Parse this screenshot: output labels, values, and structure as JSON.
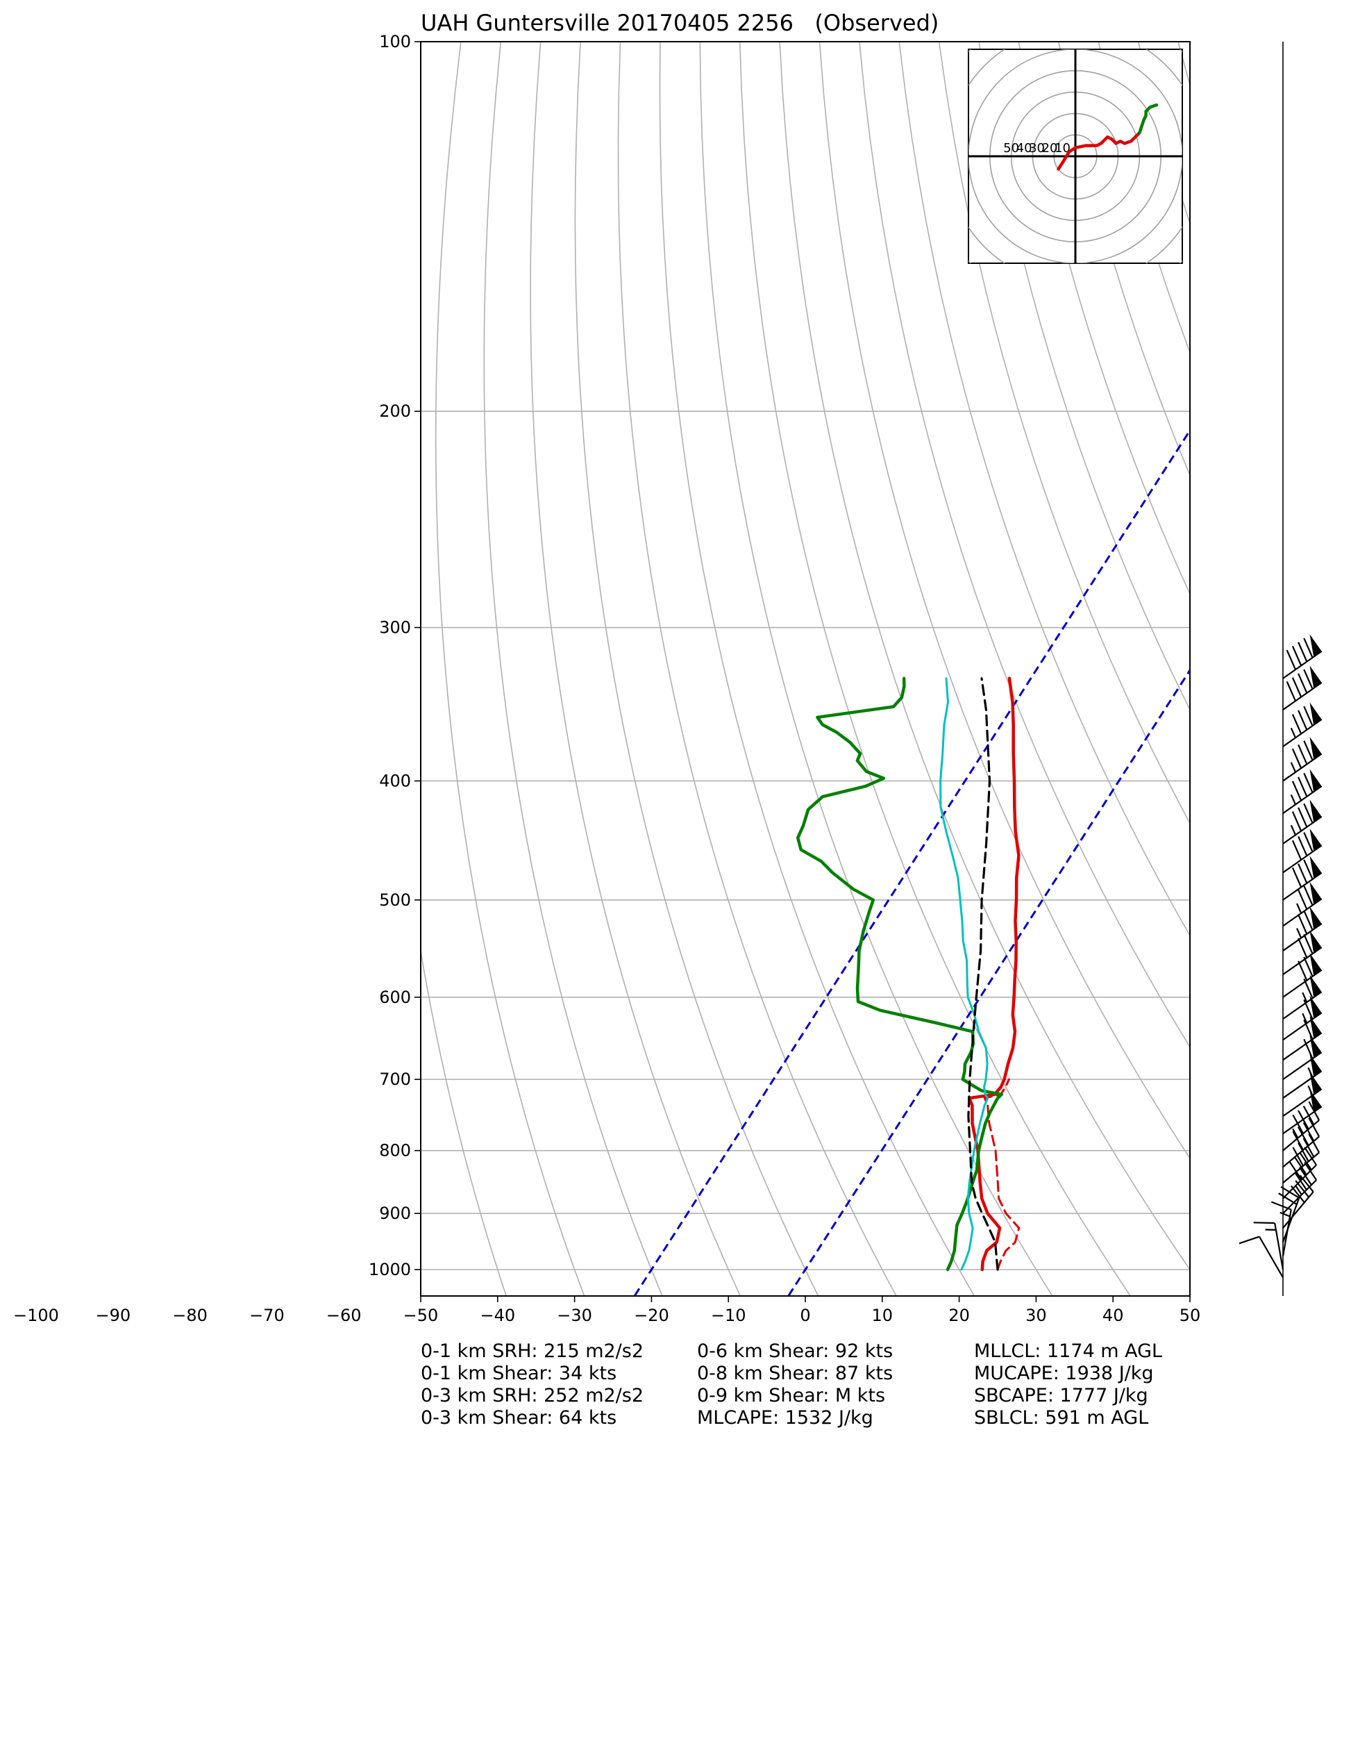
{
  "chart_data": {
    "type": "line",
    "title": "UAH Guntersville 20170405 2256   (Observed)",
    "diagram": "skew-T log-P",
    "xlabel": "",
    "ylabel": "",
    "x_range": [
      -50,
      50
    ],
    "x_tick_labels": [
      "−100",
      "−90",
      "−80",
      "−70",
      "−60",
      "−50",
      "−40",
      "−30",
      "−20",
      "−10",
      "0",
      "10",
      "20",
      "30",
      "40",
      "50"
    ],
    "x_ticks": [
      -100,
      -90,
      -80,
      -70,
      -60,
      -50,
      -40,
      -30,
      -20,
      -10,
      0,
      10,
      20,
      30,
      40,
      50
    ],
    "y_scale": "log",
    "y_range": [
      1050,
      100
    ],
    "y_ticks": [
      100,
      200,
      300,
      400,
      500,
      600,
      700,
      800,
      900,
      1000
    ],
    "y_tick_labels": [
      "100",
      "200",
      "300",
      "400",
      "500",
      "600",
      "700",
      "800",
      "900",
      "1000"
    ],
    "grid": true,
    "dry_adiabat_temps_at_1000hPa": [
      -40,
      -30,
      -20,
      -10,
      0,
      10,
      20,
      30,
      40,
      50,
      60,
      70,
      80,
      90,
      100,
      110,
      120,
      130,
      140,
      150,
      160,
      170,
      180
    ],
    "colors": {
      "temperature": "#e00000",
      "dewpoint": "#008000",
      "wetbulb": "#00c0c0",
      "parcel": "#000000",
      "isotherm": "#0000cc",
      "grid": "#b0b0b0"
    },
    "series": [
      {
        "id": "temperature",
        "style": "solid",
        "points": [
          [
            1000,
            23.0
          ],
          [
            985,
            22.4
          ],
          [
            965,
            22.0
          ],
          [
            950,
            22.6
          ],
          [
            925,
            21.8
          ],
          [
            900,
            19.0
          ],
          [
            875,
            17.0
          ],
          [
            850,
            15.5
          ],
          [
            800,
            12.5
          ],
          [
            760,
            9.5
          ],
          [
            735,
            8.0
          ],
          [
            725,
            7.0
          ],
          [
            720,
            10.0
          ],
          [
            710,
            10.2
          ],
          [
            700,
            10.0
          ],
          [
            680,
            9.2
          ],
          [
            660,
            8.5
          ],
          [
            640,
            7.4
          ],
          [
            620,
            5.7
          ],
          [
            600,
            4.4
          ],
          [
            580,
            3.0
          ],
          [
            560,
            1.6
          ],
          [
            540,
            0.0
          ],
          [
            520,
            -1.8
          ],
          [
            500,
            -3.4
          ],
          [
            480,
            -5.2
          ],
          [
            460,
            -6.8
          ],
          [
            440,
            -9.2
          ],
          [
            420,
            -11.4
          ],
          [
            400,
            -13.6
          ],
          [
            380,
            -16.0
          ],
          [
            360,
            -18.4
          ],
          [
            345,
            -20.4
          ],
          [
            330,
            -22.8
          ]
        ]
      },
      {
        "id": "virtual_temperature",
        "style": "dashed",
        "points": [
          [
            1000,
            25.0
          ],
          [
            985,
            24.7
          ],
          [
            965,
            24.5
          ],
          [
            950,
            25.0
          ],
          [
            925,
            24.3
          ],
          [
            900,
            21.4
          ],
          [
            875,
            19.2
          ],
          [
            850,
            17.8
          ],
          [
            800,
            14.8
          ],
          [
            760,
            11.7
          ],
          [
            735,
            10.0
          ],
          [
            725,
            9.0
          ],
          [
            720,
            10.8
          ],
          [
            710,
            10.8
          ],
          [
            700,
            10.6
          ]
        ]
      },
      {
        "id": "dewpoint",
        "style": "solid",
        "points": [
          [
            1000,
            18.5
          ],
          [
            985,
            18.3
          ],
          [
            965,
            17.8
          ],
          [
            950,
            17.2
          ],
          [
            935,
            16.6
          ],
          [
            920,
            16.0
          ],
          [
            900,
            15.7
          ],
          [
            880,
            15.3
          ],
          [
            860,
            14.8
          ],
          [
            850,
            14.5
          ],
          [
            830,
            14.0
          ],
          [
            800,
            12.6
          ],
          [
            780,
            11.9
          ],
          [
            760,
            11.2
          ],
          [
            745,
            10.9
          ],
          [
            735,
            10.8
          ],
          [
            725,
            10.7
          ],
          [
            720,
            10.9
          ],
          [
            715,
            8.0
          ],
          [
            708,
            6.4
          ],
          [
            700,
            4.6
          ],
          [
            690,
            4.2
          ],
          [
            680,
            3.6
          ],
          [
            665,
            3.4
          ],
          [
            655,
            3.0
          ],
          [
            640,
            1.9
          ],
          [
            630,
            -3.4
          ],
          [
            615,
            -11.9
          ],
          [
            605,
            -15.5
          ],
          [
            590,
            -16.7
          ],
          [
            570,
            -18.1
          ],
          [
            550,
            -19.6
          ],
          [
            530,
            -20.7
          ],
          [
            510,
            -21.6
          ],
          [
            500,
            -22.0
          ],
          [
            490,
            -25.5
          ],
          [
            475,
            -29.6
          ],
          [
            465,
            -32.0
          ],
          [
            455,
            -35.6
          ],
          [
            445,
            -37.0
          ],
          [
            435,
            -37.3
          ],
          [
            422,
            -38.0
          ],
          [
            412,
            -37.2
          ],
          [
            404,
            -32.5
          ],
          [
            398,
            -30.8
          ],
          [
            393,
            -33.6
          ],
          [
            385,
            -35.7
          ],
          [
            380,
            -35.9
          ],
          [
            372,
            -38.2
          ],
          [
            365,
            -40.8
          ],
          [
            360,
            -43.2
          ],
          [
            355,
            -44.5
          ],
          [
            348,
            -35.5
          ],
          [
            342,
            -35.2
          ],
          [
            335,
            -35.8
          ],
          [
            330,
            -36.5
          ]
        ]
      },
      {
        "id": "wetbulb",
        "style": "solid",
        "points": [
          [
            1000,
            20.3
          ],
          [
            985,
            20.1
          ],
          [
            965,
            19.7
          ],
          [
            950,
            19.2
          ],
          [
            925,
            18.3
          ],
          [
            900,
            16.6
          ],
          [
            875,
            15.2
          ],
          [
            850,
            14.1
          ],
          [
            800,
            12.0
          ],
          [
            760,
            10.5
          ],
          [
            735,
            9.6
          ],
          [
            725,
            9.4
          ],
          [
            720,
            8.8
          ],
          [
            710,
            8.0
          ],
          [
            700,
            7.6
          ],
          [
            680,
            6.5
          ],
          [
            660,
            5.0
          ],
          [
            640,
            2.7
          ],
          [
            620,
            0.7
          ],
          [
            600,
            -1.6
          ],
          [
            580,
            -3.2
          ],
          [
            560,
            -4.8
          ],
          [
            540,
            -6.9
          ],
          [
            520,
            -8.7
          ],
          [
            500,
            -10.7
          ],
          [
            480,
            -12.8
          ],
          [
            460,
            -15.4
          ],
          [
            440,
            -18.2
          ],
          [
            420,
            -21.0
          ],
          [
            400,
            -23.2
          ],
          [
            380,
            -25.2
          ],
          [
            360,
            -27.4
          ],
          [
            345,
            -28.8
          ],
          [
            330,
            -31.0
          ]
        ]
      },
      {
        "id": "parcel",
        "style": "dashed",
        "points": [
          [
            1000,
            25.0
          ],
          [
            950,
            22.4
          ],
          [
            925,
            20.4
          ],
          [
            900,
            18.3
          ],
          [
            875,
            16.2
          ],
          [
            850,
            14.4
          ],
          [
            800,
            11.5
          ],
          [
            750,
            8.4
          ],
          [
            700,
            5.5
          ],
          [
            650,
            2.6
          ],
          [
            600,
            -0.5
          ],
          [
            550,
            -3.8
          ],
          [
            500,
            -7.9
          ],
          [
            450,
            -12.0
          ],
          [
            400,
            -16.8
          ],
          [
            350,
            -23.2
          ],
          [
            330,
            -26.4
          ]
        ]
      }
    ],
    "isotherms_dashed": [
      -20,
      0
    ],
    "hodograph": {
      "ring_labels": [
        "50",
        "40",
        "30",
        "20",
        "10"
      ],
      "ring_speeds": [
        10,
        20,
        30,
        40,
        50,
        60,
        70,
        80,
        90
      ],
      "axis_max": 50,
      "segments": [
        {
          "color": "#e00000",
          "points": [
            [
              -8,
              -6
            ],
            [
              -6,
              -3
            ],
            [
              -3,
              2
            ],
            [
              0,
              4
            ],
            [
              5,
              5
            ],
            [
              10,
              5
            ],
            [
              12,
              6
            ],
            [
              15,
              9
            ],
            [
              17,
              8
            ],
            [
              19,
              6
            ],
            [
              21,
              7
            ],
            [
              23,
              6
            ],
            [
              26,
              7
            ],
            [
              28,
              9
            ],
            [
              30,
              11
            ]
          ]
        },
        {
          "color": "#008000",
          "points": [
            [
              30,
              11
            ],
            [
              31,
              14
            ],
            [
              32,
              17
            ],
            [
              33,
              19
            ],
            [
              33,
              21
            ],
            [
              35,
              23
            ],
            [
              38,
              24
            ]
          ]
        }
      ]
    },
    "wind_barbs": [
      {
        "pressure": 330,
        "dir": 235,
        "speed": 90
      },
      {
        "pressure": 350,
        "dir": 235,
        "speed": 90
      },
      {
        "pressure": 375,
        "dir": 235,
        "speed": 85
      },
      {
        "pressure": 400,
        "dir": 235,
        "speed": 85
      },
      {
        "pressure": 425,
        "dir": 235,
        "speed": 85
      },
      {
        "pressure": 450,
        "dir": 235,
        "speed": 85
      },
      {
        "pressure": 475,
        "dir": 235,
        "speed": 80
      },
      {
        "pressure": 500,
        "dir": 235,
        "speed": 80
      },
      {
        "pressure": 525,
        "dir": 235,
        "speed": 75
      },
      {
        "pressure": 550,
        "dir": 235,
        "speed": 75
      },
      {
        "pressure": 575,
        "dir": 235,
        "speed": 70
      },
      {
        "pressure": 600,
        "dir": 235,
        "speed": 70
      },
      {
        "pressure": 625,
        "dir": 235,
        "speed": 65
      },
      {
        "pressure": 650,
        "dir": 235,
        "speed": 65
      },
      {
        "pressure": 675,
        "dir": 235,
        "speed": 60
      },
      {
        "pressure": 700,
        "dir": 235,
        "speed": 60
      },
      {
        "pressure": 725,
        "dir": 235,
        "speed": 55
      },
      {
        "pressure": 750,
        "dir": 235,
        "speed": 55
      },
      {
        "pressure": 775,
        "dir": 235,
        "speed": 50
      },
      {
        "pressure": 800,
        "dir": 230,
        "speed": 45
      },
      {
        "pressure": 825,
        "dir": 230,
        "speed": 40
      },
      {
        "pressure": 850,
        "dir": 230,
        "speed": 40
      },
      {
        "pressure": 875,
        "dir": 225,
        "speed": 40
      },
      {
        "pressure": 900,
        "dir": 225,
        "speed": 35
      },
      {
        "pressure": 925,
        "dir": 220,
        "speed": 30
      },
      {
        "pressure": 950,
        "dir": 200,
        "speed": 20
      },
      {
        "pressure": 975,
        "dir": 190,
        "speed": 15
      },
      {
        "pressure": 1000,
        "dir": 170,
        "speed": 15
      },
      {
        "pressure": 1015,
        "dir": 150,
        "speed": 10
      }
    ]
  },
  "stats": {
    "col1": [
      "0-1 km SRH: 215 m2/s2",
      "0-1 km Shear: 34 kts",
      "0-3 km SRH: 252 m2/s2",
      "0-3 km Shear: 64 kts"
    ],
    "col2": [
      "0-6 km Shear: 92 kts",
      "0-8 km Shear: 87 kts",
      "0-9 km Shear: M kts",
      "MLCAPE: 1532 J/kg"
    ],
    "col3": [
      "MLLCL: 1174 m AGL",
      "MUCAPE: 1938 J/kg",
      "SBCAPE: 1777 J/kg",
      "SBLCL: 591 m AGL"
    ]
  }
}
